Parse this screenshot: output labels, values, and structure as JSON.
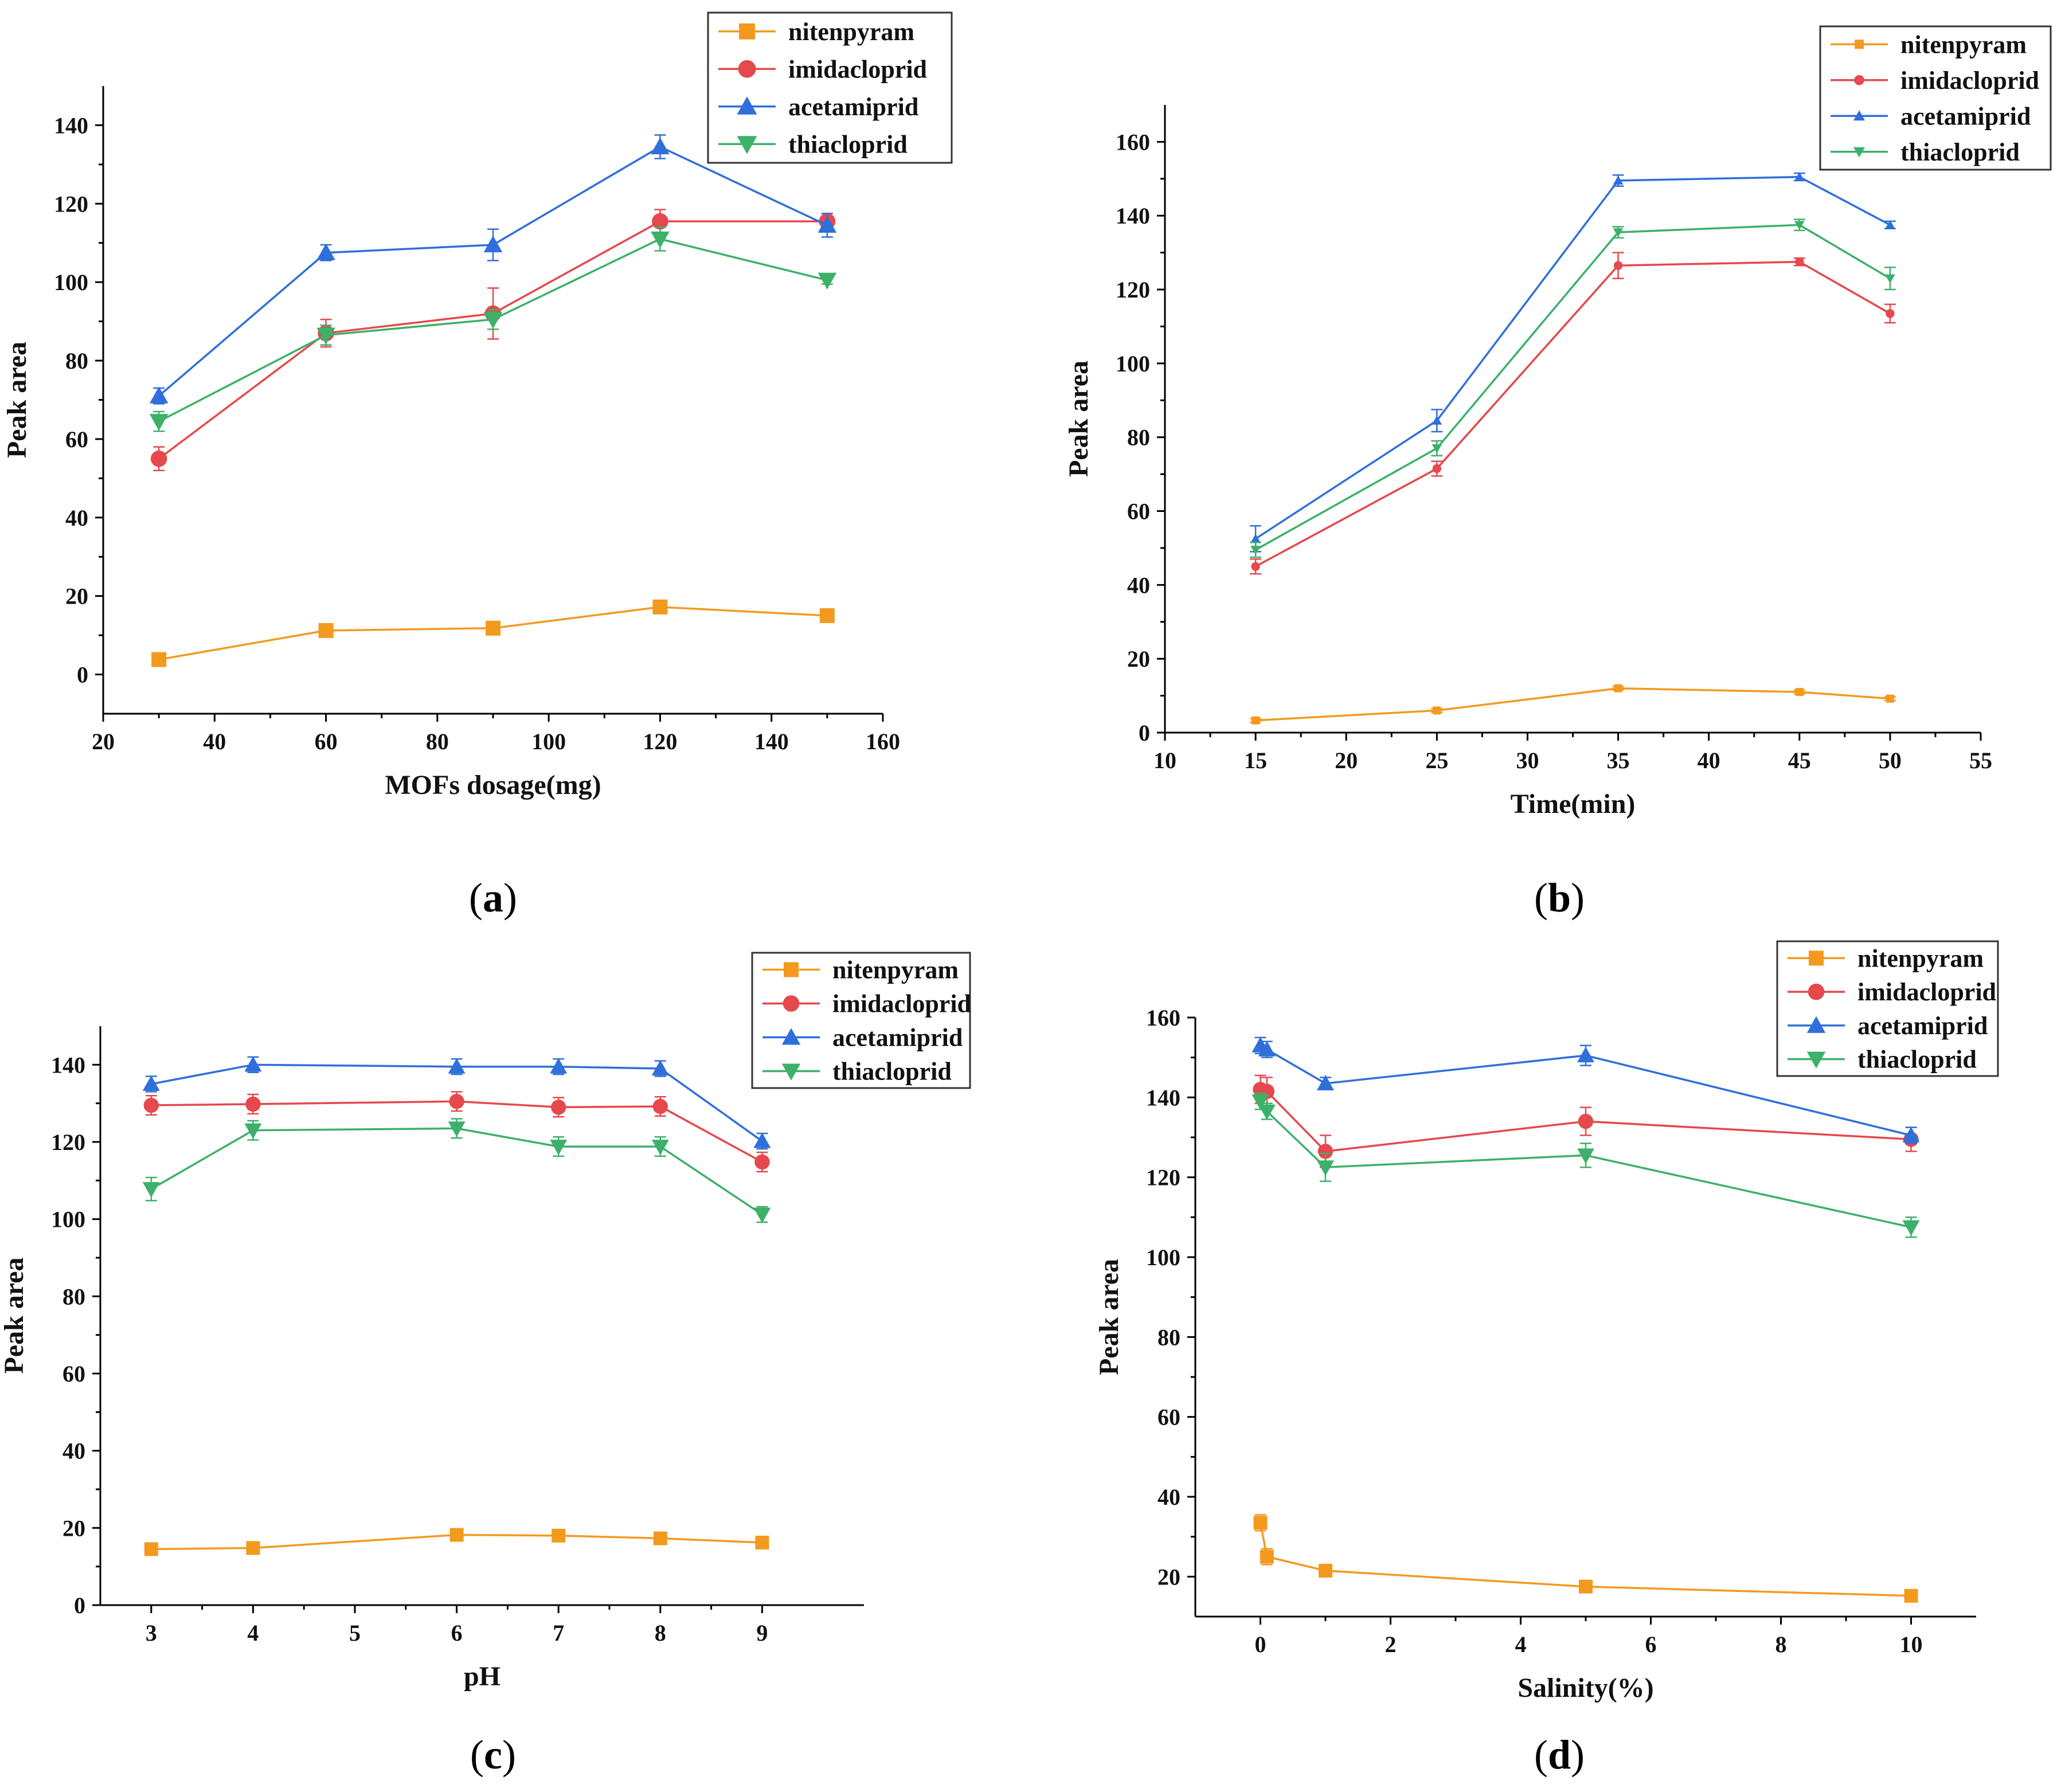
{
  "series_names": [
    "nitenpyram",
    "imidacloprid",
    "acetamiprid",
    "thiacloprid"
  ],
  "series_colors": {
    "nitenpyram": "#F39A1E",
    "imidacloprid": "#E5484D",
    "acetamiprid": "#2F6FDB",
    "thiacloprid": "#3DB06A"
  },
  "series_markers": {
    "nitenpyram": "square",
    "imidacloprid": "circle",
    "acetamiprid": "triangle-up",
    "thiacloprid": "triangle-down"
  },
  "panels": [
    {
      "id": "a",
      "label_open": "(",
      "label_letter": "a",
      "label_close": ")"
    },
    {
      "id": "b",
      "label_open": "(",
      "label_letter": "b",
      "label_close": ")"
    },
    {
      "id": "c",
      "label_open": "(",
      "label_letter": "c",
      "label_close": ")"
    },
    {
      "id": "d",
      "label_open": "(",
      "label_letter": "d",
      "label_close": ")"
    }
  ],
  "chart_data": [
    {
      "id": "a",
      "type": "line",
      "xlabel": "MOFs dosage(mg)",
      "ylabel": "Peak area",
      "xlim": [
        20,
        160
      ],
      "ylim": [
        -10,
        150
      ],
      "xticks": [
        20,
        40,
        60,
        80,
        100,
        120,
        140,
        160
      ],
      "yticks": [
        0,
        20,
        40,
        60,
        80,
        100,
        120,
        140
      ],
      "legend_position": "top-right",
      "x": [
        30,
        60,
        90,
        120,
        150
      ],
      "series": [
        {
          "name": "nitenpyram",
          "values": [
            3.8,
            11.2,
            11.8,
            17.2,
            15.0
          ],
          "errors": [
            0.8,
            1.0,
            1.0,
            1.2,
            1.0
          ]
        },
        {
          "name": "imidacloprid",
          "values": [
            55.0,
            87.0,
            92.0,
            115.5,
            115.5
          ],
          "errors": [
            3.0,
            3.5,
            6.5,
            3.0,
            2.0
          ]
        },
        {
          "name": "acetamiprid",
          "values": [
            71.0,
            107.5,
            109.5,
            134.5,
            114.5
          ],
          "errors": [
            2.0,
            2.0,
            4.0,
            3.0,
            3.0
          ]
        },
        {
          "name": "thiacloprid",
          "values": [
            64.5,
            86.5,
            90.5,
            111.0,
            100.5
          ],
          "errors": [
            2.5,
            2.5,
            2.5,
            3.0,
            1.0
          ]
        }
      ]
    },
    {
      "id": "b",
      "type": "line",
      "xlabel": "Time(min)",
      "ylabel": "Peak area",
      "xlim": [
        10,
        55
      ],
      "ylim": [
        0,
        170
      ],
      "xticks": [
        10,
        15,
        20,
        25,
        30,
        35,
        40,
        45,
        50,
        55
      ],
      "yticks": [
        0,
        20,
        40,
        60,
        80,
        100,
        120,
        140,
        160
      ],
      "legend_position": "top-right",
      "x": [
        15,
        25,
        35,
        45,
        50
      ],
      "series": [
        {
          "name": "nitenpyram",
          "values": [
            3.3,
            6.0,
            12.0,
            11.0,
            9.2
          ],
          "errors": [
            0.5,
            0.5,
            0.5,
            0.5,
            0.5
          ]
        },
        {
          "name": "imidacloprid",
          "values": [
            45.0,
            71.5,
            126.5,
            127.5,
            113.5
          ],
          "errors": [
            2.0,
            2.0,
            3.5,
            1.0,
            2.5
          ]
        },
        {
          "name": "acetamiprid",
          "values": [
            52.5,
            84.5,
            149.5,
            150.5,
            137.5
          ],
          "errors": [
            3.5,
            3.0,
            1.5,
            1.0,
            1.0
          ]
        },
        {
          "name": "thiacloprid",
          "values": [
            49.5,
            77.0,
            135.5,
            137.5,
            123.0
          ],
          "errors": [
            2.0,
            2.0,
            1.5,
            1.5,
            3.0
          ]
        }
      ]
    },
    {
      "id": "c",
      "type": "line",
      "xlabel": "pH",
      "ylabel": "Peak area",
      "xlim": [
        2.5,
        10
      ],
      "ylim": [
        0,
        150
      ],
      "xticks": [
        3,
        4,
        5,
        6,
        7,
        8,
        9
      ],
      "yticks": [
        0,
        20,
        40,
        60,
        80,
        100,
        120,
        140
      ],
      "legend_position": "top-right",
      "x": [
        3,
        4,
        6,
        7,
        8,
        9
      ],
      "series": [
        {
          "name": "nitenpyram",
          "values": [
            14.5,
            14.8,
            18.2,
            18.0,
            17.3,
            16.2
          ],
          "errors": [
            0.6,
            0.6,
            0.6,
            0.6,
            0.6,
            0.6
          ]
        },
        {
          "name": "imidacloprid",
          "values": [
            129.5,
            129.8,
            130.5,
            129.0,
            129.2,
            114.8
          ],
          "errors": [
            2.5,
            2.5,
            2.5,
            2.5,
            2.5,
            2.5
          ]
        },
        {
          "name": "acetamiprid",
          "values": [
            135.0,
            140.0,
            139.5,
            139.5,
            139.0,
            120.2
          ],
          "errors": [
            2.0,
            2.0,
            2.0,
            2.0,
            2.0,
            2.0
          ]
        },
        {
          "name": "thiacloprid",
          "values": [
            107.8,
            123.0,
            123.5,
            118.8,
            118.8,
            101.2
          ],
          "errors": [
            3.0,
            2.5,
            2.5,
            2.5,
            2.5,
            2.0
          ]
        }
      ]
    },
    {
      "id": "d",
      "type": "line",
      "xlabel": "Salinity(%)",
      "ylabel": "Peak area",
      "xlim": [
        -1,
        11
      ],
      "ylim": [
        10,
        160
      ],
      "xticks": [
        0,
        2,
        4,
        6,
        8,
        10
      ],
      "yticks": [
        20,
        40,
        60,
        80,
        100,
        120,
        140,
        160
      ],
      "legend_position": "top-right",
      "x": [
        0,
        0.1,
        1,
        5,
        10
      ],
      "series": [
        {
          "name": "nitenpyram",
          "values": [
            33.5,
            25.0,
            21.5,
            17.5,
            15.2
          ],
          "errors": [
            2.0,
            2.0,
            1.5,
            1.0,
            0.8
          ]
        },
        {
          "name": "imidacloprid",
          "values": [
            142.0,
            141.5,
            126.5,
            134.0,
            129.5
          ],
          "errors": [
            3.5,
            3.5,
            4.0,
            3.5,
            3.0
          ]
        },
        {
          "name": "acetamiprid",
          "values": [
            153.0,
            152.0,
            143.5,
            150.5,
            130.5
          ],
          "errors": [
            2.0,
            2.0,
            1.5,
            2.5,
            2.0
          ]
        },
        {
          "name": "thiacloprid",
          "values": [
            139.0,
            136.5,
            122.5,
            125.5,
            107.5
          ],
          "errors": [
            2.0,
            2.0,
            3.5,
            3.0,
            2.5
          ]
        }
      ]
    }
  ]
}
